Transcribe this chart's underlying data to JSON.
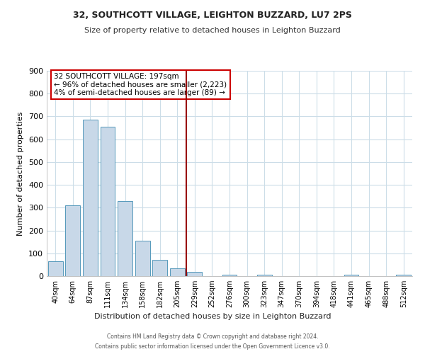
{
  "title1": "32, SOUTHCOTT VILLAGE, LEIGHTON BUZZARD, LU7 2PS",
  "title2": "Size of property relative to detached houses in Leighton Buzzard",
  "xlabel": "Distribution of detached houses by size in Leighton Buzzard",
  "ylabel": "Number of detached properties",
  "bar_labels": [
    "40sqm",
    "64sqm",
    "87sqm",
    "111sqm",
    "134sqm",
    "158sqm",
    "182sqm",
    "205sqm",
    "229sqm",
    "252sqm",
    "276sqm",
    "300sqm",
    "323sqm",
    "347sqm",
    "370sqm",
    "394sqm",
    "418sqm",
    "441sqm",
    "465sqm",
    "488sqm",
    "512sqm"
  ],
  "bar_values": [
    65,
    310,
    685,
    655,
    330,
    155,
    70,
    35,
    20,
    0,
    5,
    0,
    5,
    0,
    0,
    0,
    0,
    5,
    0,
    0,
    5
  ],
  "bar_color": "#c8d8e8",
  "bar_edge_color": "#5599bb",
  "vline_x": 7.5,
  "vline_color": "#990000",
  "annotation_title": "32 SOUTHCOTT VILLAGE: 197sqm",
  "annotation_line1": "← 96% of detached houses are smaller (2,223)",
  "annotation_line2": "4% of semi-detached houses are larger (89) →",
  "annotation_box_color": "#ffffff",
  "annotation_box_edge": "#cc0000",
  "ylim": [
    0,
    900
  ],
  "yticks": [
    0,
    100,
    200,
    300,
    400,
    500,
    600,
    700,
    800,
    900
  ],
  "footer1": "Contains HM Land Registry data © Crown copyright and database right 2024.",
  "footer2": "Contains public sector information licensed under the Open Government Licence v3.0.",
  "bg_color": "#ffffff",
  "grid_color": "#ccdde8"
}
